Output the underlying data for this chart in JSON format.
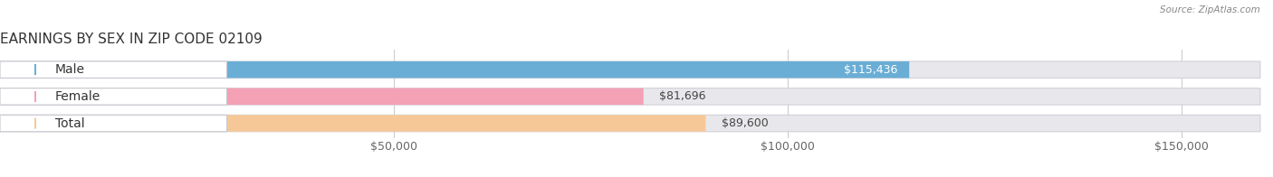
{
  "title": "EARNINGS BY SEX IN ZIP CODE 02109",
  "source": "Source: ZipAtlas.com",
  "categories": [
    "Male",
    "Female",
    "Total"
  ],
  "values": [
    115436,
    81696,
    89600
  ],
  "bar_colors": [
    "#6aaed6",
    "#f4a0b5",
    "#f7c897"
  ],
  "bg_bar_color": "#e8e8ec",
  "xlim_max": 160000,
  "xticks": [
    50000,
    100000,
    150000
  ],
  "xtick_labels": [
    "$50,000",
    "$100,000",
    "$150,000"
  ],
  "bar_height": 0.62,
  "bar_spacing": 1.0,
  "title_fontsize": 11,
  "tick_fontsize": 9,
  "value_fontsize": 9,
  "label_fontsize": 10,
  "background_color": "#ffffff",
  "pill_text_color": "#333333",
  "grid_color": "#cccccc",
  "source_color": "#888888"
}
